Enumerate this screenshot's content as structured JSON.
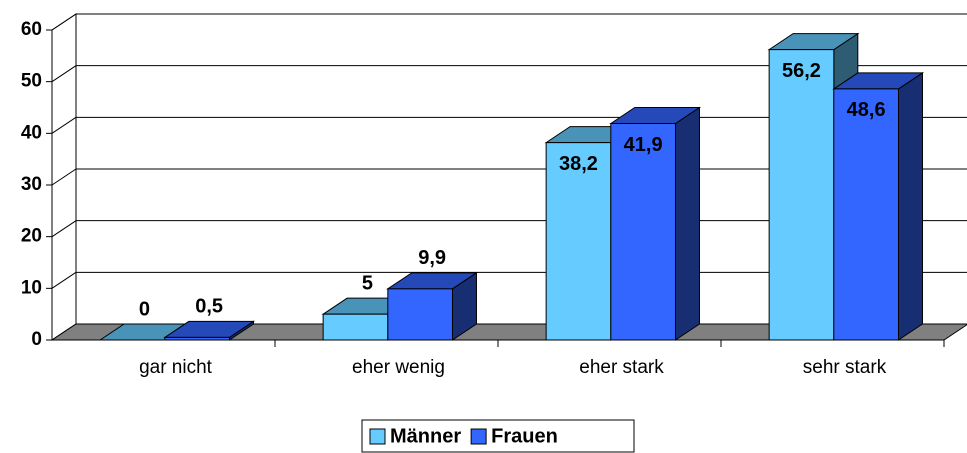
{
  "chart_data": {
    "type": "bar3d",
    "categories": [
      "gar nicht",
      "eher wenig",
      "eher stark",
      "sehr stark"
    ],
    "series": [
      {
        "name": "Männer",
        "color": "#66ccff",
        "values": [
          0,
          5,
          38.2,
          56.2
        ],
        "value_labels": [
          "0",
          "5",
          "38,2",
          "56,2"
        ]
      },
      {
        "name": "Frauen",
        "color": "#3366ff",
        "values": [
          0.5,
          9.9,
          41.9,
          48.6
        ],
        "value_labels": [
          "0,5",
          "9,9",
          "41,9",
          "48,6"
        ]
      }
    ],
    "ylim": [
      0,
      60
    ],
    "yticks": [
      0,
      10,
      20,
      30,
      40,
      50,
      60
    ],
    "grid": true,
    "legend": "bottom"
  }
}
